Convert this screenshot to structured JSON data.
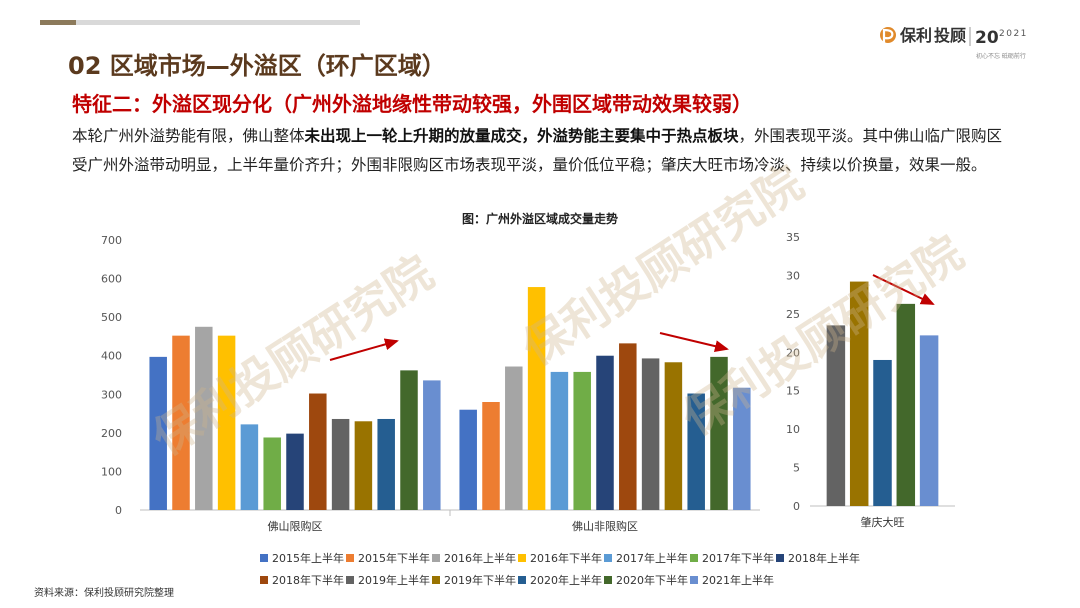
{
  "header": {
    "section_title": "02  区域市场—外溢区（环广区域）",
    "feature_title": "特征二：外溢区现分化（广州外溢地缘性带动较强，外围区域带动效果较弱）",
    "para_part1": "本轮广州外溢势能有限，佛山整体",
    "para_bold": "未出现上一轮上升期的放量成交，外溢势能主要集中于热点板块",
    "para_part2": "，外围表现平淡。其中佛山临广限购区受广州外溢带动明显，上半年量价齐升；外围非限购区市场表现平淡，量价低位平稳；肇庆大旺市场冷淡、持续以价换量，效果一般。"
  },
  "logo": {
    "brand": "保利",
    "brand_sub": "投顾",
    "year": "2021",
    "anniv": "20",
    "slogan": "初心不忘  砥砺前行"
  },
  "watermark_text": "保利投顾研究院",
  "source": "资料来源：保利投顾研究院整理",
  "chart_data": [
    {
      "type": "bar",
      "title": "图：广州外溢区域成交量走势",
      "categories": [
        "佛山限购区",
        "佛山非限购区"
      ],
      "ylim": [
        0,
        700
      ],
      "yticks": [
        0,
        100,
        200,
        300,
        400,
        500,
        600,
        700
      ],
      "series": [
        {
          "name": "2015年上半年",
          "values": [
            397,
            260
          ]
        },
        {
          "name": "2015年下半年",
          "values": [
            452,
            280
          ]
        },
        {
          "name": "2016年上半年",
          "values": [
            475,
            372
          ]
        },
        {
          "name": "2016年下半年",
          "values": [
            452,
            578
          ]
        },
        {
          "name": "2017年上半年",
          "values": [
            222,
            358
          ]
        },
        {
          "name": "2017年下半年",
          "values": [
            188,
            358
          ]
        },
        {
          "name": "2018年上半年",
          "values": [
            198,
            400
          ]
        },
        {
          "name": "2018年下半年",
          "values": [
            302,
            432
          ]
        },
        {
          "name": "2019年上半年",
          "values": [
            236,
            393
          ]
        },
        {
          "name": "2019年下半年",
          "values": [
            230,
            383
          ]
        },
        {
          "name": "2020年上半年",
          "values": [
            236,
            302
          ]
        },
        {
          "name": "2020年下半年",
          "values": [
            362,
            397
          ]
        },
        {
          "name": "2021年上半年",
          "values": [
            336,
            317
          ]
        }
      ],
      "grid": false
    },
    {
      "type": "bar",
      "categories": [
        "肇庆大旺"
      ],
      "ylim": [
        0,
        35
      ],
      "yticks": [
        0,
        5,
        10,
        15,
        20,
        25,
        30,
        35
      ],
      "series": [
        {
          "name": "2019年上半年",
          "values": [
            23.5
          ]
        },
        {
          "name": "2019年下半年",
          "values": [
            29.2
          ]
        },
        {
          "name": "2020年上半年",
          "values": [
            19.0
          ]
        },
        {
          "name": "2020年下半年",
          "values": [
            26.3
          ]
        },
        {
          "name": "2021年上半年",
          "values": [
            22.2
          ]
        }
      ],
      "grid": false
    }
  ],
  "colors": {
    "2015年上半年": "#4472c4",
    "2015年下半年": "#ed7d31",
    "2016年上半年": "#a5a5a5",
    "2016年下半年": "#ffc000",
    "2017年上半年": "#5b9bd5",
    "2017年下半年": "#70ad47",
    "2018年上半年": "#264478",
    "2018年下半年": "#9e480e",
    "2019年上半年": "#636363",
    "2019年下半年": "#997300",
    "2020年上半年": "#255e91",
    "2020年下半年": "#43682b",
    "2021年上半年": "#698ed0",
    "arrow": "#c00000"
  }
}
